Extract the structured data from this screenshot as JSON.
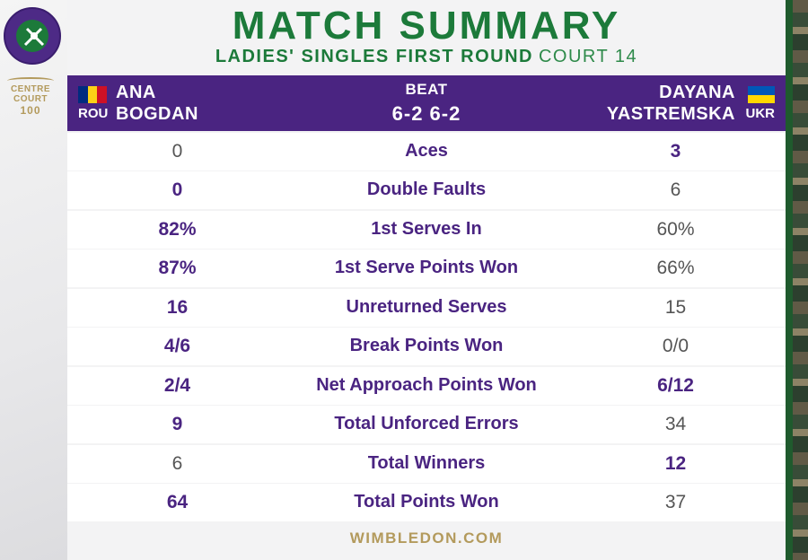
{
  "header": {
    "title": "MATCH SUMMARY",
    "round": "LADIES' SINGLES FIRST ROUND",
    "court": "COURT 14"
  },
  "branding": {
    "centre_court_line1": "CENTRE",
    "centre_court_line2": "COURT",
    "centre_court_line3": "100",
    "footer": "WIMBLEDON.COM"
  },
  "colors": {
    "wimbledon_purple": "#4a2481",
    "wimbledon_green": "#1c7a3a",
    "gold": "#b39a5c"
  },
  "player1": {
    "first_name": "ANA",
    "last_name": "BOGDAN",
    "country": "ROU",
    "flag": [
      "#002b7f",
      "#fcd116",
      "#ce1126"
    ]
  },
  "player2": {
    "first_name": "DAYANA",
    "last_name": "YASTREMSKA",
    "country": "UKR",
    "flag": [
      "#0057b7",
      "#ffd700"
    ]
  },
  "result": {
    "verb": "BEAT",
    "score": "6-2 6-2"
  },
  "stats": [
    {
      "label": "Aces",
      "p1": "0",
      "p2": "3",
      "leader": "p2"
    },
    {
      "label": "Double Faults",
      "p1": "0",
      "p2": "6",
      "leader": "p1"
    },
    {
      "label": "1st Serves In",
      "p1": "82%",
      "p2": "60%",
      "leader": "p1"
    },
    {
      "label": "1st Serve Points Won",
      "p1": "87%",
      "p2": "66%",
      "leader": "p1"
    },
    {
      "label": "Unreturned Serves",
      "p1": "16",
      "p2": "15",
      "leader": "p1"
    },
    {
      "label": "Break Points Won",
      "p1": "4/6",
      "p2": "0/0",
      "leader": "p1"
    },
    {
      "label": "Net Approach Points Won",
      "p1": "2/4",
      "p2": "6/12",
      "leader": "both"
    },
    {
      "label": "Total Unforced Errors",
      "p1": "9",
      "p2": "34",
      "leader": "p1"
    },
    {
      "label": "Total Winners",
      "p1": "6",
      "p2": "12",
      "leader": "p2"
    },
    {
      "label": "Total Points Won",
      "p1": "64",
      "p2": "37",
      "leader": "p1"
    }
  ]
}
